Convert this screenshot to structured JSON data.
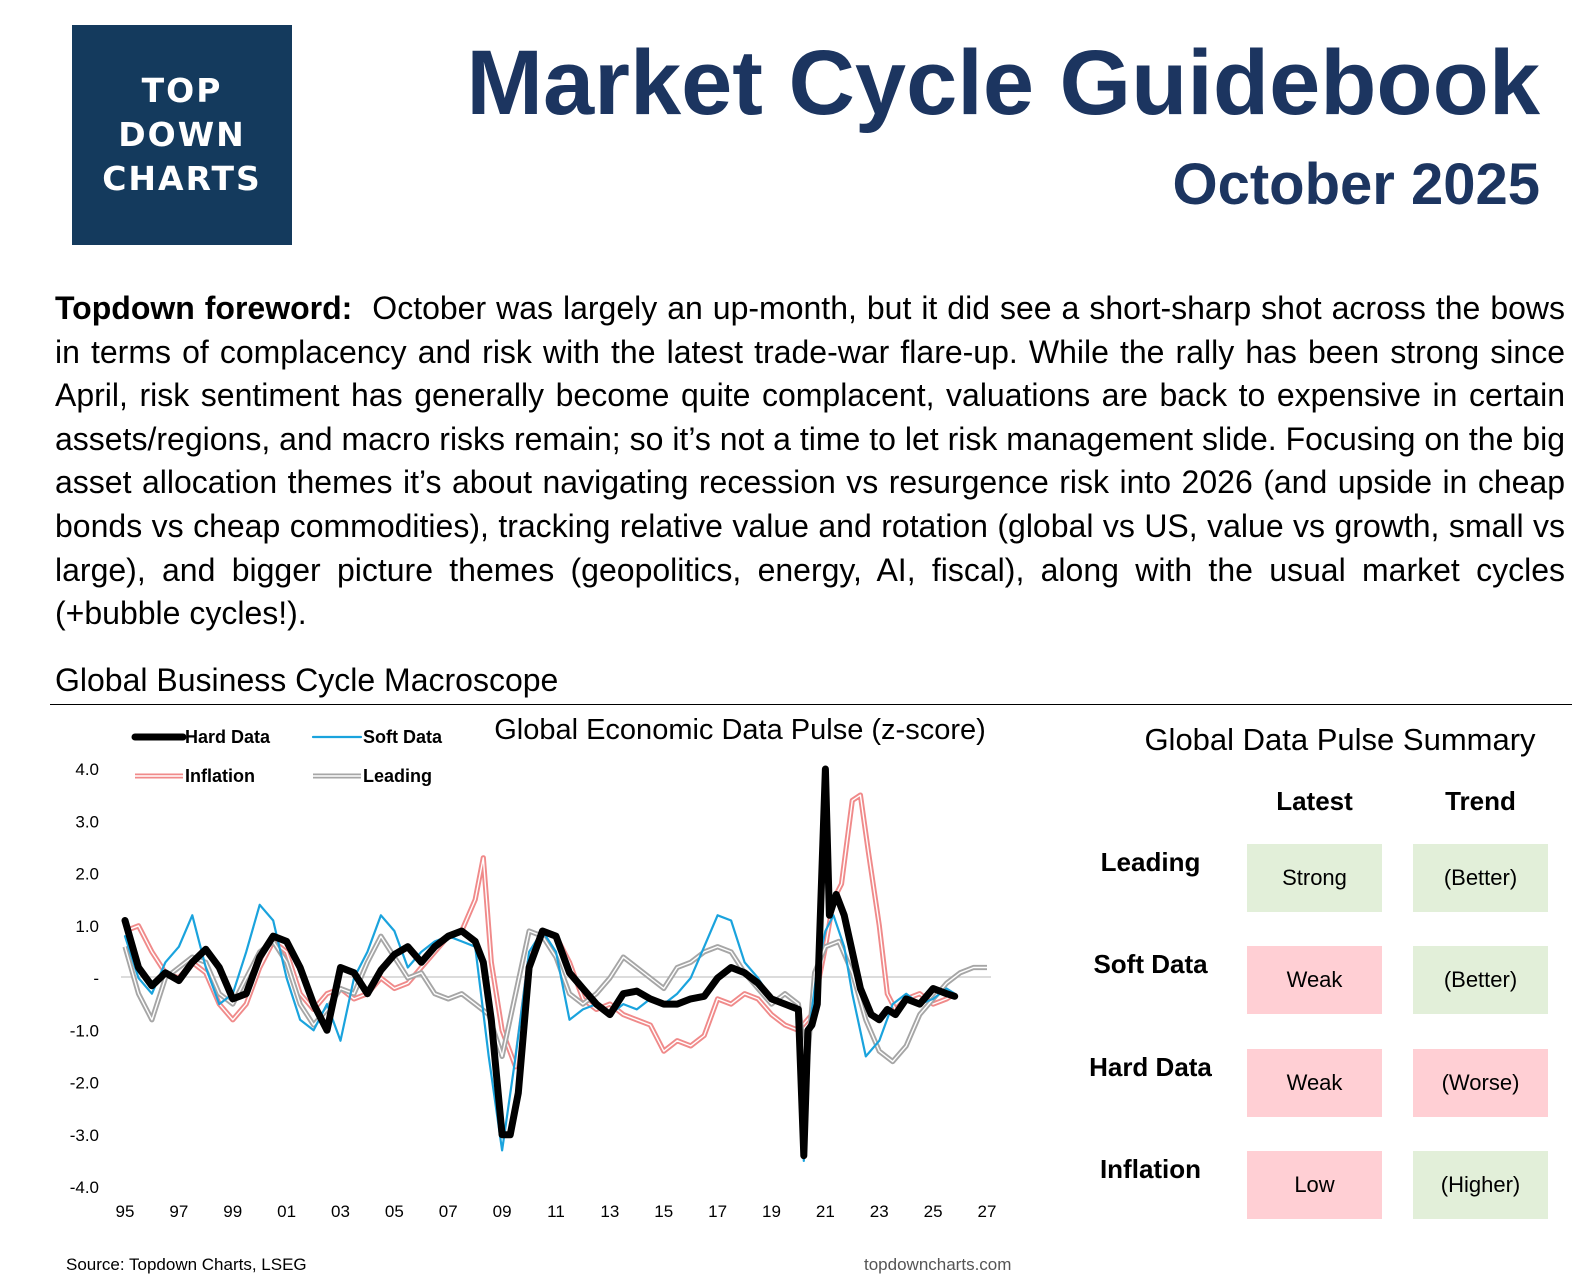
{
  "logo": {
    "lines": [
      "TOP",
      "DOWN",
      "CHARTS"
    ]
  },
  "header": {
    "title": "Market Cycle Guidebook",
    "subtitle": "October 2025"
  },
  "foreword": {
    "lead": "Topdown foreword:",
    "body": "October was largely an up-month, but it did see a short-sharp shot across the bows in terms of complacency and risk with the latest trade-war flare-up. While the rally has been strong since April, risk sentiment has generally become quite complacent, valuations are back to expensive in certain assets/regions, and macro risks remain; so it’s not a time to let risk management slide.  Focusing on the big asset allocation themes it’s about navigating recession vs resurgence risk into 2026 (and upside in cheap bonds vs cheap commodities), tracking relative value and rotation (global vs US, value vs growth, small vs large), and bigger picture themes (geopolitics, energy, AI, fiscal), along with the usual market cycles (+bubble cycles!)."
  },
  "section": {
    "title": "Global Business Cycle Macroscope"
  },
  "chart_data": {
    "type": "line",
    "title": "Global Economic Data Pulse (z-score)",
    "xlabel": "",
    "ylabel": "",
    "xlim": [
      1995,
      2027
    ],
    "ylim": [
      -4,
      4
    ],
    "x_ticks": [
      "95",
      "97",
      "99",
      "01",
      "03",
      "05",
      "07",
      "09",
      "11",
      "13",
      "15",
      "17",
      "19",
      "21",
      "23",
      "25",
      "27"
    ],
    "y_ticks": [
      "4.0",
      "3.0",
      "2.0",
      "1.0",
      "-",
      "-1.0",
      "-2.0",
      "-3.0",
      "-4.0"
    ],
    "grid": false,
    "legend": "top-left",
    "series": [
      {
        "name": "Hard Data",
        "color": "#000000",
        "width": 7,
        "x": [
          1995,
          1995.5,
          1996,
          1996.5,
          1997,
          1997.5,
          1998,
          1998.5,
          1999,
          1999.5,
          2000,
          2000.5,
          2001,
          2001.5,
          2002,
          2002.5,
          2003,
          2003.5,
          2004,
          2004.5,
          2005,
          2005.5,
          2006,
          2006.5,
          2007,
          2007.5,
          2008,
          2008.3,
          2008.6,
          2009,
          2009.3,
          2009.6,
          2010,
          2010.5,
          2011,
          2011.5,
          2012,
          2012.5,
          2013,
          2013.5,
          2014,
          2014.5,
          2015,
          2015.5,
          2016,
          2016.5,
          2017,
          2017.5,
          2018,
          2018.5,
          2019,
          2019.5,
          2020,
          2020.2,
          2020.35,
          2020.5,
          2020.7,
          2021,
          2021.15,
          2021.4,
          2021.7,
          2022,
          2022.3,
          2022.7,
          2023,
          2023.3,
          2023.6,
          2024,
          2024.5,
          2025,
          2025.5,
          2025.8
        ],
        "y": [
          1.1,
          0.2,
          -0.15,
          0.1,
          -0.05,
          0.3,
          0.55,
          0.2,
          -0.4,
          -0.3,
          0.4,
          0.8,
          0.7,
          0.2,
          -0.5,
          -1.0,
          0.2,
          0.1,
          -0.3,
          0.15,
          0.45,
          0.6,
          0.3,
          0.6,
          0.8,
          0.9,
          0.7,
          0.3,
          -0.8,
          -3.0,
          -3.0,
          -2.2,
          0.2,
          0.9,
          0.8,
          0.1,
          -0.2,
          -0.5,
          -0.7,
          -0.3,
          -0.25,
          -0.4,
          -0.5,
          -0.5,
          -0.4,
          -0.35,
          0.0,
          0.2,
          0.1,
          -0.1,
          -0.4,
          -0.5,
          -0.6,
          -3.4,
          -1.0,
          -0.9,
          -0.5,
          4.0,
          1.2,
          1.6,
          1.2,
          0.5,
          -0.2,
          -0.7,
          -0.8,
          -0.6,
          -0.7,
          -0.4,
          -0.5,
          -0.2,
          -0.3,
          -0.35
        ]
      },
      {
        "name": "Soft Data",
        "color": "#1aa3dd",
        "width": 2.2,
        "x": [
          1995,
          1995.5,
          1996,
          1996.5,
          1997,
          1997.5,
          1998,
          1998.5,
          1999,
          1999.5,
          2000,
          2000.5,
          2001,
          2001.5,
          2002,
          2002.5,
          2003,
          2003.5,
          2004,
          2004.5,
          2005,
          2005.5,
          2006,
          2006.5,
          2007,
          2007.5,
          2008,
          2008.5,
          2009,
          2009.5,
          2010,
          2010.5,
          2011,
          2011.5,
          2012,
          2012.5,
          2013,
          2013.5,
          2014,
          2014.5,
          2015,
          2015.5,
          2016,
          2016.5,
          2017,
          2017.5,
          2018,
          2018.5,
          2019,
          2019.5,
          2020,
          2020.2,
          2020.4,
          2020.7,
          2021,
          2021.3,
          2021.7,
          2022,
          2022.5,
          2023,
          2023.5,
          2024,
          2024.5,
          2025,
          2025.5,
          2025.8
        ],
        "y": [
          0.8,
          0.0,
          -0.3,
          0.3,
          0.6,
          1.2,
          0.2,
          -0.5,
          -0.3,
          0.5,
          1.4,
          1.1,
          0.0,
          -0.8,
          -1.0,
          -0.5,
          -1.2,
          0.0,
          0.5,
          1.2,
          0.9,
          0.2,
          0.5,
          0.7,
          0.8,
          0.7,
          0.6,
          -1.5,
          -3.3,
          -1.5,
          0.5,
          0.9,
          0.5,
          -0.8,
          -0.6,
          -0.5,
          -0.7,
          -0.5,
          -0.6,
          -0.4,
          -0.5,
          -0.3,
          0.0,
          0.6,
          1.2,
          1.1,
          0.3,
          0.0,
          -0.4,
          -0.5,
          -0.6,
          -3.5,
          -1.0,
          0.2,
          0.9,
          1.2,
          0.6,
          -0.3,
          -1.5,
          -1.2,
          -0.5,
          -0.3,
          -0.5,
          -0.4,
          -0.2,
          -0.3
        ]
      },
      {
        "name": "Inflation",
        "color": "#f08a8a",
        "width": 2.2,
        "double": true,
        "x": [
          1995,
          1995.5,
          1996,
          1996.5,
          1997,
          1997.5,
          1998,
          1998.5,
          1999,
          1999.5,
          2000,
          2000.5,
          2001,
          2001.5,
          2002,
          2002.5,
          2003,
          2003.5,
          2004,
          2004.5,
          2005,
          2005.5,
          2006,
          2006.5,
          2007,
          2007.5,
          2008,
          2008.3,
          2008.6,
          2009,
          2009.5,
          2010,
          2010.5,
          2011,
          2011.5,
          2012,
          2012.5,
          2013,
          2013.5,
          2014,
          2014.5,
          2015,
          2015.5,
          2016,
          2016.5,
          2017,
          2017.5,
          2018,
          2018.5,
          2019,
          2019.5,
          2020,
          2020.5,
          2021,
          2021.3,
          2021.6,
          2022,
          2022.3,
          2022.6,
          2023,
          2023.3,
          2023.6,
          2024,
          2024.5,
          2025,
          2025.5,
          2025.8
        ],
        "y": [
          0.9,
          1.0,
          0.5,
          0.1,
          0.0,
          0.3,
          0.1,
          -0.5,
          -0.8,
          -0.5,
          0.2,
          0.7,
          0.5,
          -0.3,
          -0.6,
          -0.3,
          -0.2,
          -0.4,
          -0.3,
          0.0,
          -0.2,
          -0.1,
          0.2,
          0.5,
          0.8,
          0.9,
          1.5,
          2.3,
          0.3,
          -1.0,
          -1.7,
          0.3,
          0.9,
          0.8,
          0.3,
          -0.4,
          -0.6,
          -0.5,
          -0.7,
          -0.8,
          -0.9,
          -1.4,
          -1.2,
          -1.3,
          -1.1,
          -0.4,
          -0.5,
          -0.3,
          -0.4,
          -0.7,
          -0.9,
          -1.0,
          -0.7,
          0.6,
          1.5,
          1.8,
          3.4,
          3.5,
          2.4,
          1.0,
          -0.3,
          -0.6,
          -0.4,
          -0.3,
          -0.5,
          -0.4,
          -0.3
        ]
      },
      {
        "name": "Leading",
        "color": "#a6a6a6",
        "width": 2.2,
        "double": true,
        "x": [
          1995,
          1995.5,
          1996,
          1996.5,
          1997,
          1997.5,
          1998,
          1998.5,
          1999,
          1999.5,
          2000,
          2000.5,
          2001,
          2001.5,
          2002,
          2002.5,
          2003,
          2003.5,
          2004,
          2004.5,
          2005,
          2005.5,
          2006,
          2006.5,
          2007,
          2007.5,
          2008,
          2008.5,
          2009,
          2009.5,
          2010,
          2010.5,
          2011,
          2011.5,
          2012,
          2012.5,
          2013,
          2013.5,
          2014,
          2014.5,
          2015,
          2015.5,
          2016,
          2016.5,
          2017,
          2017.5,
          2018,
          2018.5,
          2019,
          2019.5,
          2020,
          2020.3,
          2020.6,
          2021,
          2021.5,
          2022,
          2022.5,
          2023,
          2023.5,
          2024,
          2024.5,
          2025,
          2025.5,
          2026,
          2026.5,
          2027
        ],
        "y": [
          0.6,
          -0.3,
          -0.8,
          0.0,
          0.2,
          0.4,
          0.3,
          -0.3,
          -0.5,
          0.0,
          0.5,
          0.7,
          0.3,
          -0.5,
          -0.9,
          -0.6,
          -0.2,
          -0.3,
          0.3,
          0.8,
          0.4,
          0.0,
          0.1,
          -0.3,
          -0.4,
          -0.3,
          -0.5,
          -0.7,
          -1.5,
          -0.3,
          0.9,
          0.8,
          0.4,
          -0.3,
          -0.5,
          -0.3,
          0.0,
          0.4,
          0.2,
          0.0,
          -0.2,
          0.2,
          0.3,
          0.5,
          0.6,
          0.5,
          0.1,
          -0.2,
          -0.5,
          -0.3,
          -0.5,
          -1.8,
          0.1,
          0.6,
          0.7,
          0.1,
          -0.8,
          -1.4,
          -1.6,
          -1.3,
          -0.7,
          -0.4,
          -0.1,
          0.1,
          0.2,
          0.2
        ]
      }
    ]
  },
  "summary": {
    "title": "Global Data Pulse Summary",
    "col_latest": "Latest",
    "col_trend": "Trend",
    "colors": {
      "good": "#e2efd9",
      "bad": "#ffcfd4"
    },
    "rows": [
      {
        "label": "Leading",
        "latest": "Strong",
        "latest_tone": "good",
        "trend": "(Better)",
        "trend_tone": "good"
      },
      {
        "label": "Soft Data",
        "latest": "Weak",
        "latest_tone": "bad",
        "trend": "(Better)",
        "trend_tone": "good"
      },
      {
        "label": "Hard Data",
        "latest": "Weak",
        "latest_tone": "bad",
        "trend": "(Worse)",
        "trend_tone": "bad"
      },
      {
        "label": "Inflation",
        "latest": "Low",
        "latest_tone": "bad",
        "trend": "(Higher)",
        "trend_tone": "good"
      }
    ]
  },
  "footer": {
    "source": "Source: Topdown Charts, LSEG",
    "site": "topdowncharts.com"
  }
}
